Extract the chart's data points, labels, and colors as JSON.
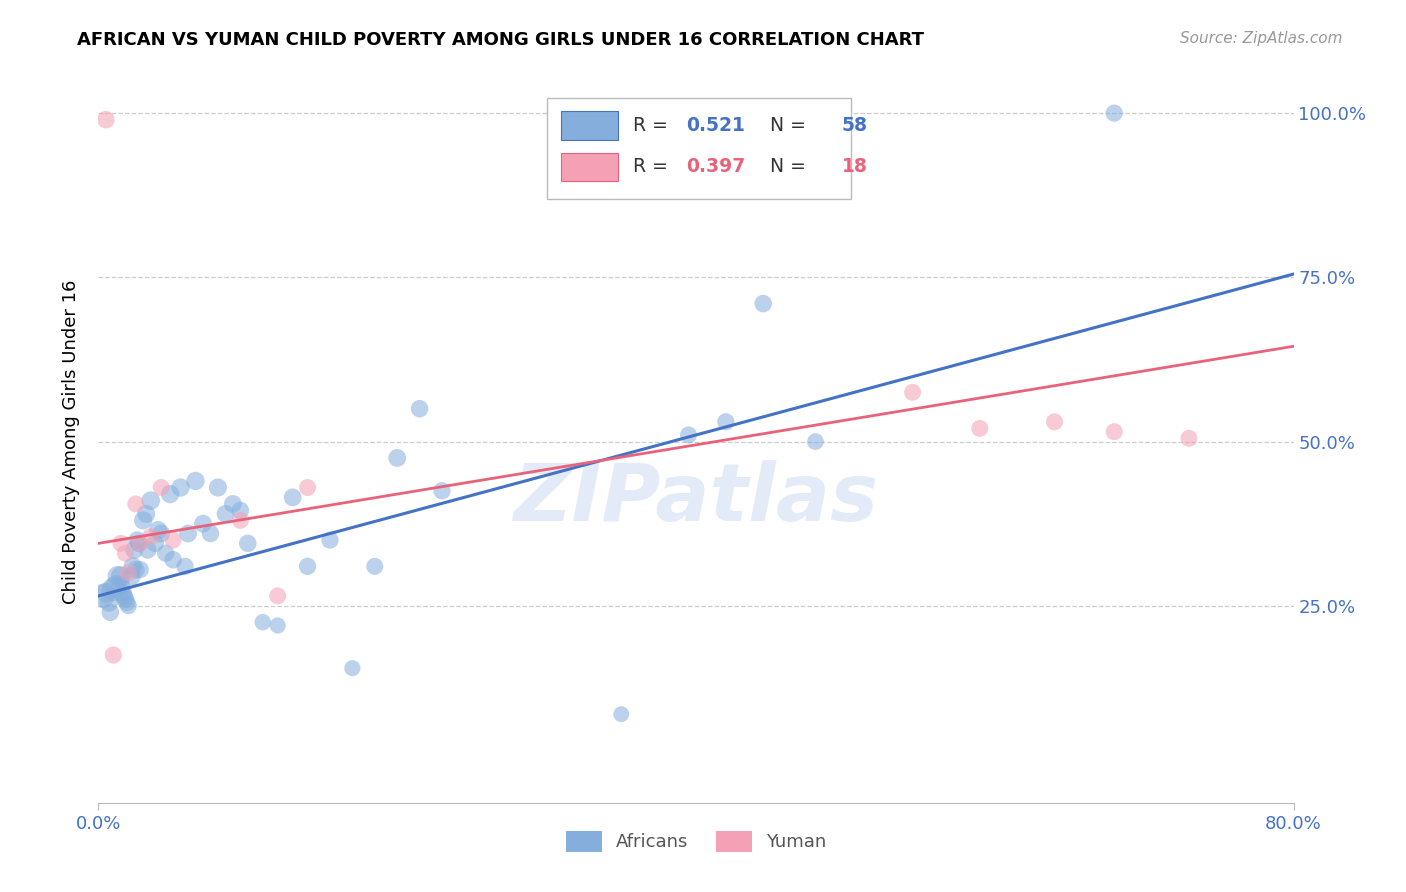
{
  "title": "AFRICAN VS YUMAN CHILD POVERTY AMONG GIRLS UNDER 16 CORRELATION CHART",
  "source": "Source: ZipAtlas.com",
  "ylabel": "Child Poverty Among Girls Under 16",
  "xlim": [
    0.0,
    0.8
  ],
  "ylim": [
    -0.05,
    1.05
  ],
  "xticks": [
    0.0,
    0.8
  ],
  "xticklabels": [
    "0.0%",
    "80.0%"
  ],
  "ytick_positions": [
    0.25,
    0.5,
    0.75,
    1.0
  ],
  "yticklabels": [
    "25.0%",
    "50.0%",
    "75.0%",
    "100.0%"
  ],
  "blue_color": "#85AEDD",
  "pink_color": "#F4A0B5",
  "blue_line_color": "#4472C4",
  "pink_line_color": "#E8637A",
  "blue_R": "0.521",
  "blue_N": "58",
  "pink_R": "0.397",
  "pink_N": "18",
  "watermark": "ZIPatlas",
  "blue_line_x0": 0.0,
  "blue_line_y0": 0.265,
  "blue_line_x1": 0.8,
  "blue_line_y1": 0.755,
  "pink_line_x0": 0.0,
  "pink_line_y0": 0.345,
  "pink_line_x1": 0.8,
  "pink_line_y1": 0.645,
  "africans_x": [
    0.003,
    0.005,
    0.007,
    0.008,
    0.01,
    0.012,
    0.013,
    0.015,
    0.015,
    0.016,
    0.017,
    0.018,
    0.019,
    0.02,
    0.022,
    0.023,
    0.024,
    0.025,
    0.026,
    0.027,
    0.028,
    0.03,
    0.032,
    0.033,
    0.035,
    0.038,
    0.04,
    0.042,
    0.045,
    0.048,
    0.05,
    0.055,
    0.058,
    0.06,
    0.065,
    0.07,
    0.075,
    0.08,
    0.085,
    0.09,
    0.095,
    0.1,
    0.11,
    0.12,
    0.13,
    0.14,
    0.155,
    0.17,
    0.185,
    0.2,
    0.215,
    0.23,
    0.35,
    0.395,
    0.42,
    0.445,
    0.48,
    0.68
  ],
  "africans_y": [
    0.265,
    0.27,
    0.255,
    0.24,
    0.275,
    0.28,
    0.295,
    0.295,
    0.28,
    0.27,
    0.265,
    0.26,
    0.255,
    0.25,
    0.295,
    0.31,
    0.335,
    0.305,
    0.35,
    0.345,
    0.305,
    0.38,
    0.39,
    0.335,
    0.41,
    0.345,
    0.365,
    0.36,
    0.33,
    0.42,
    0.32,
    0.43,
    0.31,
    0.36,
    0.44,
    0.375,
    0.36,
    0.43,
    0.39,
    0.405,
    0.395,
    0.345,
    0.225,
    0.22,
    0.415,
    0.31,
    0.35,
    0.155,
    0.31,
    0.475,
    0.55,
    0.425,
    0.085,
    0.51,
    0.53,
    0.71,
    0.5,
    1.0
  ],
  "africans_size": [
    300,
    200,
    180,
    160,
    280,
    250,
    220,
    200,
    190,
    180,
    170,
    165,
    155,
    150,
    180,
    175,
    170,
    165,
    160,
    160,
    155,
    175,
    170,
    160,
    180,
    160,
    175,
    165,
    155,
    175,
    160,
    175,
    155,
    165,
    175,
    165,
    160,
    170,
    160,
    165,
    160,
    160,
    140,
    135,
    165,
    155,
    155,
    135,
    150,
    165,
    160,
    155,
    130,
    150,
    155,
    160,
    145,
    155
  ],
  "yuman_x": [
    0.005,
    0.01,
    0.015,
    0.018,
    0.02,
    0.025,
    0.028,
    0.035,
    0.042,
    0.05,
    0.095,
    0.12,
    0.14,
    0.545,
    0.59,
    0.64,
    0.68,
    0.73
  ],
  "yuman_y": [
    0.99,
    0.175,
    0.345,
    0.33,
    0.3,
    0.405,
    0.345,
    0.355,
    0.43,
    0.35,
    0.38,
    0.265,
    0.43,
    0.575,
    0.52,
    0.53,
    0.515,
    0.505
  ],
  "yuman_size": [
    160,
    155,
    150,
    150,
    150,
    150,
    150,
    150,
    150,
    150,
    150,
    150,
    150,
    150,
    150,
    150,
    150,
    150
  ]
}
